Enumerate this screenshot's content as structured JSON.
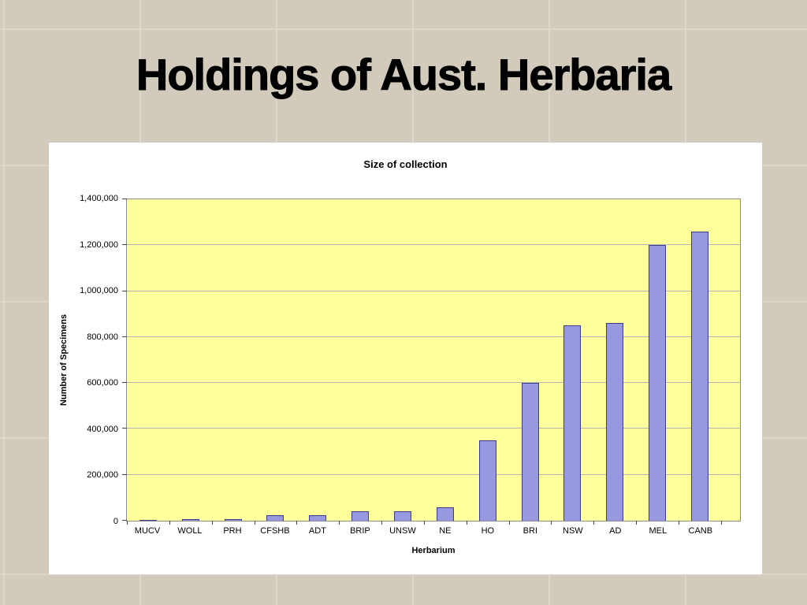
{
  "slide": {
    "title": "Holdings of Aust. Herbaria"
  },
  "chart_data": {
    "type": "bar",
    "title": "Size of collection",
    "xlabel": "Herbarium",
    "ylabel": "Number of Specimens",
    "categories": [
      "MUCV",
      "WOLL",
      "PRH",
      "CFSHB",
      "ADT",
      "BRIP",
      "UNSW",
      "NE",
      "HO",
      "BRI",
      "NSW",
      "AD",
      "MEL",
      "CANB"
    ],
    "values": [
      5000,
      8000,
      8000,
      25000,
      25000,
      40000,
      40000,
      60000,
      350000,
      600000,
      850000,
      860000,
      1200000,
      1260000
    ],
    "ylim": [
      0,
      1400000
    ],
    "ytick_interval": 200000,
    "ytick_labels": [
      "0",
      "200,000",
      "400,000",
      "600,000",
      "800,000",
      "1,000,000",
      "1,200,000",
      "1,400,000"
    ],
    "grid": true,
    "legend": "none",
    "colors": {
      "slide_bg": "#d2cbbc",
      "panel_bg": "#ffffff",
      "plot_bg": "#ffff9c",
      "bar_fill": "#9898e0",
      "bar_border": "#3c3c8c",
      "gridline": "#b5b5b5"
    }
  }
}
